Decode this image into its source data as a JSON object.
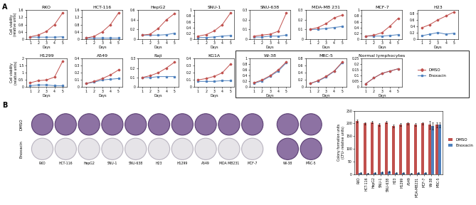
{
  "panel_labels": [
    "A",
    "B"
  ],
  "chart_data": [
    {
      "type": "line",
      "title": "RKO",
      "x_label": "Days",
      "y_label": "Cell viability\n(relative units)",
      "x": [
        1,
        2,
        3,
        4,
        5
      ],
      "xlim": [
        0.5,
        5.5
      ],
      "xticks": [
        1,
        2,
        3,
        4,
        5
      ],
      "ylim": [
        0,
        1.6
      ],
      "yticks": [
        0,
        0.4,
        0.8,
        1.2,
        1.6
      ],
      "series": [
        {
          "name": "DMSO",
          "color": "#c0504d",
          "marker": "diamond",
          "values": [
            0.12,
            0.22,
            0.42,
            0.8,
            1.45
          ]
        },
        {
          "name": "Enoxacin",
          "color": "#4f81bd",
          "marker": "square",
          "values": [
            0.1,
            0.1,
            0.1,
            0.1,
            0.12
          ]
        }
      ]
    },
    {
      "type": "line",
      "title": "HCT-116",
      "x_label": "Days",
      "x": [
        1,
        2,
        3,
        4,
        5
      ],
      "xlim": [
        0.5,
        5.5
      ],
      "xticks": [
        1,
        2,
        3,
        4,
        5
      ],
      "ylim": [
        0,
        1.6
      ],
      "yticks": [
        0,
        0.4,
        0.8,
        1.2,
        1.6
      ],
      "series": [
        {
          "name": "DMSO",
          "color": "#c0504d",
          "marker": "diamond",
          "values": [
            0.05,
            0.15,
            0.4,
            0.8,
            1.45
          ]
        },
        {
          "name": "Enoxacin",
          "color": "#4f81bd",
          "marker": "square",
          "values": [
            0.05,
            0.05,
            0.05,
            0.05,
            0.05
          ]
        }
      ]
    },
    {
      "type": "line",
      "title": "HepG2",
      "x_label": "Days",
      "x": [
        1,
        2,
        3,
        4,
        5
      ],
      "xlim": [
        0.5,
        5.5
      ],
      "xticks": [
        1,
        2,
        3,
        4,
        5
      ],
      "ylim": [
        0,
        0.6
      ],
      "yticks": [
        0,
        0.2,
        0.4,
        0.6
      ],
      "series": [
        {
          "name": "DMSO",
          "color": "#c0504d",
          "marker": "diamond",
          "values": [
            0.08,
            0.1,
            0.22,
            0.4,
            0.53
          ]
        },
        {
          "name": "Enoxacin",
          "color": "#4f81bd",
          "marker": "square",
          "values": [
            0.08,
            0.08,
            0.08,
            0.09,
            0.12
          ]
        }
      ]
    },
    {
      "type": "line",
      "title": "SNU-1",
      "x_label": "Days",
      "x": [
        1,
        2,
        3,
        4,
        5
      ],
      "xlim": [
        0.5,
        5.5
      ],
      "xticks": [
        1,
        2,
        3,
        4,
        5
      ],
      "ylim": [
        0,
        1
      ],
      "yticks": [
        0,
        0.2,
        0.4,
        0.6,
        0.8,
        1
      ],
      "series": [
        {
          "name": "DMSO",
          "color": "#c0504d",
          "marker": "diamond",
          "values": [
            0.1,
            0.15,
            0.28,
            0.5,
            0.9
          ]
        },
        {
          "name": "Enoxacin",
          "color": "#4f81bd",
          "marker": "square",
          "values": [
            0.05,
            0.05,
            0.07,
            0.1,
            0.12
          ]
        }
      ]
    },
    {
      "type": "line",
      "title": "SNU-638",
      "x_label": "Days",
      "x": [
        1,
        2,
        3,
        4,
        5
      ],
      "xlim": [
        0.5,
        5.5
      ],
      "xticks": [
        1,
        2,
        3,
        4,
        5
      ],
      "ylim": [
        0,
        0.3
      ],
      "yticks": [
        0,
        0.1,
        0.2,
        0.3
      ],
      "series": [
        {
          "name": "DMSO",
          "color": "#c0504d",
          "marker": "diamond",
          "values": [
            0.03,
            0.04,
            0.05,
            0.08,
            0.27
          ]
        },
        {
          "name": "Enoxacin",
          "color": "#4f81bd",
          "marker": "square",
          "values": [
            0.02,
            0.02,
            0.03,
            0.03,
            0.04
          ]
        }
      ]
    },
    {
      "type": "line",
      "title": "MDA-MB 231",
      "x_label": "Days",
      "x": [
        1,
        2,
        3,
        4,
        5
      ],
      "xlim": [
        0.5,
        5.5
      ],
      "xticks": [
        1,
        2,
        3,
        4,
        5
      ],
      "ylim": [
        0,
        0.3
      ],
      "yticks": [
        0,
        0.1,
        0.2,
        0.3
      ],
      "series": [
        {
          "name": "DMSO",
          "color": "#c0504d",
          "marker": "diamond",
          "values": [
            0.1,
            0.12,
            0.16,
            0.22,
            0.25
          ]
        },
        {
          "name": "Enoxacin",
          "color": "#4f81bd",
          "marker": "square",
          "values": [
            0.1,
            0.1,
            0.11,
            0.12,
            0.13
          ]
        }
      ]
    },
    {
      "type": "line",
      "title": "MCF-7",
      "x_label": "Days",
      "x": [
        1,
        2,
        3,
        4,
        5
      ],
      "xlim": [
        0.5,
        5.5
      ],
      "xticks": [
        1,
        2,
        3,
        4,
        5
      ],
      "ylim": [
        0,
        1
      ],
      "yticks": [
        0,
        0.2,
        0.4,
        0.6,
        0.8,
        1
      ],
      "series": [
        {
          "name": "DMSO",
          "color": "#c0504d",
          "marker": "diamond",
          "values": [
            0.1,
            0.13,
            0.22,
            0.45,
            0.72
          ]
        },
        {
          "name": "Enoxacin",
          "color": "#4f81bd",
          "marker": "square",
          "values": [
            0.1,
            0.1,
            0.1,
            0.12,
            0.15
          ]
        }
      ]
    },
    {
      "type": "line",
      "title": "H23",
      "x_label": "Days",
      "x": [
        1,
        2,
        3,
        4,
        5
      ],
      "xlim": [
        0.5,
        5.5
      ],
      "xticks": [
        1,
        2,
        3,
        4,
        5
      ],
      "ylim": [
        0,
        0.9
      ],
      "yticks": [
        0,
        0.2,
        0.4,
        0.6,
        0.8
      ],
      "series": [
        {
          "name": "DMSO",
          "color": "#c0504d",
          "marker": "diamond",
          "values": [
            0.35,
            0.45,
            0.6,
            0.72,
            0.85
          ]
        },
        {
          "name": "Enoxacin",
          "color": "#4f81bd",
          "marker": "square",
          "values": [
            0.1,
            0.15,
            0.2,
            0.15,
            0.18
          ]
        }
      ]
    },
    {
      "type": "line",
      "title": "H1299",
      "x_label": "Days",
      "y_label": "Cell viability\n(relative units)",
      "x": [
        1,
        2,
        3,
        4,
        5
      ],
      "xlim": [
        0.5,
        5.5
      ],
      "xticks": [
        1,
        2,
        3,
        4,
        5
      ],
      "ylim": [
        0,
        2
      ],
      "yticks": [
        0,
        0.5,
        1,
        1.5,
        2
      ],
      "series": [
        {
          "name": "DMSO",
          "color": "#c0504d",
          "marker": "diamond",
          "values": [
            0.3,
            0.45,
            0.5,
            0.7,
            1.8
          ]
        },
        {
          "name": "Enoxacin",
          "color": "#4f81bd",
          "marker": "square",
          "values": [
            0.1,
            0.15,
            0.15,
            0.1,
            0.1
          ]
        }
      ]
    },
    {
      "type": "line",
      "title": "A549",
      "x_label": "Days",
      "x": [
        1,
        2,
        3,
        4,
        5
      ],
      "xlim": [
        0.5,
        5.5
      ],
      "xticks": [
        1,
        2,
        3,
        4,
        5
      ],
      "ylim": [
        0,
        0.4
      ],
      "yticks": [
        0,
        0.1,
        0.2,
        0.3,
        0.4
      ],
      "series": [
        {
          "name": "DMSO",
          "color": "#c0504d",
          "marker": "diamond",
          "values": [
            0.05,
            0.08,
            0.12,
            0.17,
            0.24
          ]
        },
        {
          "name": "Enoxacin",
          "color": "#4f81bd",
          "marker": "square",
          "values": [
            0.05,
            0.07,
            0.1,
            0.11,
            0.12
          ]
        }
      ]
    },
    {
      "type": "line",
      "title": "Raji",
      "x_label": "Days",
      "x": [
        1,
        2,
        3,
        4,
        5
      ],
      "xlim": [
        0.5,
        5.5
      ],
      "xticks": [
        1,
        2,
        3,
        4,
        5
      ],
      "ylim": [
        0,
        0.3
      ],
      "yticks": [
        0,
        0.1,
        0.2,
        0.3
      ],
      "series": [
        {
          "name": "DMSO",
          "color": "#c0504d",
          "marker": "diamond",
          "values": [
            0.1,
            0.12,
            0.15,
            0.2,
            0.26
          ]
        },
        {
          "name": "Enoxacin",
          "color": "#4f81bd",
          "marker": "square",
          "values": [
            0.1,
            0.1,
            0.11,
            0.11,
            0.11
          ]
        }
      ]
    },
    {
      "type": "line",
      "title": "KG1A",
      "x_label": "Days",
      "x": [
        1,
        2,
        3,
        4,
        5
      ],
      "xlim": [
        0.5,
        5.5
      ],
      "xticks": [
        1,
        2,
        3,
        4,
        5
      ],
      "ylim": [
        0,
        0.4
      ],
      "yticks": [
        0,
        0.1,
        0.2,
        0.3,
        0.4
      ],
      "series": [
        {
          "name": "DMSO",
          "color": "#c0504d",
          "marker": "diamond",
          "values": [
            0.1,
            0.12,
            0.15,
            0.2,
            0.32
          ]
        },
        {
          "name": "Enoxacin",
          "color": "#4f81bd",
          "marker": "square",
          "values": [
            0.08,
            0.08,
            0.08,
            0.09,
            0.09
          ]
        }
      ]
    },
    {
      "type": "line",
      "title": "Wi-38",
      "x_label": "Days",
      "x": [
        1,
        2,
        3,
        4,
        5
      ],
      "xlim": [
        0.5,
        5.5
      ],
      "xticks": [
        1,
        2,
        3,
        4,
        5
      ],
      "ylim": [
        0,
        1
      ],
      "yticks": [
        0,
        0.2,
        0.4,
        0.6,
        0.8,
        1
      ],
      "series": [
        {
          "name": "DMSO",
          "color": "#c0504d",
          "marker": "diamond",
          "values": [
            0.15,
            0.25,
            0.4,
            0.6,
            0.88
          ]
        },
        {
          "name": "Enoxacin",
          "color": "#4f81bd",
          "marker": "square",
          "values": [
            0.13,
            0.22,
            0.38,
            0.56,
            0.85
          ]
        }
      ]
    },
    {
      "type": "line",
      "title": "MRC-5",
      "x_label": "Days",
      "x": [
        1,
        2,
        3,
        4,
        5
      ],
      "xlim": [
        0.5,
        5.5
      ],
      "xticks": [
        1,
        2,
        3,
        4,
        5
      ],
      "ylim": [
        0,
        0.8
      ],
      "yticks": [
        0,
        0.2,
        0.4,
        0.6,
        0.8
      ],
      "series": [
        {
          "name": "DMSO",
          "color": "#c0504d",
          "marker": "diamond",
          "values": [
            0.1,
            0.18,
            0.3,
            0.45,
            0.7
          ]
        },
        {
          "name": "Enoxacin",
          "color": "#4f81bd",
          "marker": "square",
          "values": [
            0.1,
            0.17,
            0.28,
            0.44,
            0.68
          ]
        }
      ]
    },
    {
      "type": "line",
      "title": "Normal lymphocytes",
      "x_label": "Days",
      "legend": "right",
      "x": [
        1,
        2,
        3,
        4,
        5
      ],
      "xlim": [
        0.5,
        5.5
      ],
      "xticks": [
        1,
        2,
        3,
        4,
        5
      ],
      "ylim": [
        0,
        0.25
      ],
      "yticks": [
        0,
        0.05,
        0.1,
        0.15,
        0.2,
        0.25
      ],
      "series": [
        {
          "name": "DMSO",
          "color": "#c0504d",
          "marker": "diamond",
          "values": [
            0.03,
            0.08,
            0.12,
            0.14,
            0.16
          ]
        },
        {
          "name": "Enoxacin",
          "color": "#4f81bd",
          "marker": "square",
          "values": [
            0.03,
            0.08,
            0.12,
            0.14,
            0.16
          ]
        }
      ]
    },
    {
      "type": "bar",
      "y_label": "Colony formation units\n(CFU- relative units)",
      "legend": "right",
      "categories": [
        "RKO",
        "HCT-116",
        "HepG2",
        "SNU-1",
        "SNU-638",
        "H23",
        "H1299",
        "A549",
        "MDA-MB231",
        "MCF-7",
        "Wi-38",
        "MRC-5"
      ],
      "ylim": [
        0,
        250
      ],
      "yticks": [
        0,
        50,
        100,
        150,
        200,
        250
      ],
      "series": [
        {
          "name": "DMSO",
          "color": "#c0504d",
          "values": [
            210,
            200,
            205,
            195,
            205,
            190,
            195,
            200,
            195,
            200,
            195,
            195
          ],
          "errors": [
            5,
            5,
            5,
            5,
            5,
            5,
            5,
            5,
            5,
            5,
            15,
            10
          ]
        },
        {
          "name": "Enoxacin",
          "color": "#4f81bd",
          "values": [
            5,
            3,
            5,
            8,
            10,
            5,
            5,
            3,
            5,
            5,
            190,
            195
          ],
          "errors": [
            2,
            2,
            2,
            2,
            3,
            2,
            2,
            2,
            2,
            2,
            15,
            10
          ]
        }
      ]
    }
  ],
  "colony_plates": {
    "rows": [
      "DMSO",
      "Enoxacin"
    ],
    "groups": [
      {
        "columns": [
          "RKO",
          "HCT-116",
          "HepG2",
          "SNU-1",
          "SNU-638",
          "H23",
          "H1299",
          "A549",
          "MDA MB231",
          "MCF-7"
        ],
        "colonies": [
          [
            true,
            true,
            true,
            true,
            true,
            true,
            true,
            true,
            true,
            true
          ],
          [
            false,
            false,
            false,
            false,
            false,
            false,
            false,
            false,
            false,
            false
          ]
        ]
      },
      {
        "columns": [
          "Wi-38",
          "MRC-5"
        ],
        "colonies": [
          [
            true,
            true
          ],
          [
            true,
            true
          ]
        ]
      }
    ]
  }
}
